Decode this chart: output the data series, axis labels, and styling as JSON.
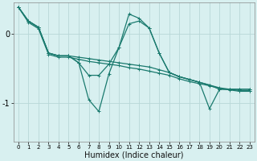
{
  "xlabel": "Humidex (Indice chaleur)",
  "bg_color": "#d8f0f0",
  "line_color": "#1a7a6e",
  "grid_color": "#b8d8d8",
  "xlim": [
    -0.5,
    23.5
  ],
  "ylim": [
    -1.55,
    0.45
  ],
  "yticks": [
    0,
    -1
  ],
  "ytick_labels": [
    "0",
    "-1"
  ],
  "xticks": [
    0,
    1,
    2,
    3,
    4,
    5,
    6,
    7,
    8,
    9,
    10,
    11,
    12,
    13,
    14,
    15,
    16,
    17,
    18,
    19,
    20,
    21,
    22,
    23
  ],
  "series": [
    [
      0.38,
      0.18,
      0.09,
      -0.28,
      -0.32,
      -0.32,
      -0.34,
      -0.36,
      -0.38,
      -0.4,
      -0.42,
      -0.44,
      -0.46,
      -0.48,
      -0.52,
      -0.56,
      -0.62,
      -0.66,
      -0.7,
      -0.74,
      -0.78,
      -0.8,
      -0.82,
      -0.82
    ],
    [
      0.38,
      0.16,
      0.07,
      -0.3,
      -0.34,
      -0.34,
      -0.37,
      -0.4,
      -0.42,
      -0.44,
      -0.46,
      -0.49,
      -0.51,
      -0.54,
      -0.57,
      -0.6,
      -0.65,
      -0.69,
      -0.72,
      -0.75,
      -0.79,
      -0.81,
      -0.83,
      -0.83
    ],
    [
      0.38,
      0.18,
      0.09,
      -0.28,
      -0.32,
      -0.32,
      -0.42,
      -0.95,
      -1.12,
      -0.58,
      -0.2,
      0.28,
      0.22,
      0.08,
      -0.28,
      -0.56,
      -0.62,
      -0.66,
      -0.7,
      -1.08,
      -0.8,
      -0.8,
      -0.8,
      -0.8
    ],
    [
      0.38,
      0.18,
      0.09,
      -0.28,
      -0.32,
      -0.32,
      -0.42,
      -0.6,
      -0.6,
      -0.44,
      -0.2,
      0.14,
      0.18,
      0.08,
      -0.28,
      -0.56,
      -0.62,
      -0.66,
      -0.7,
      -0.74,
      -0.8,
      -0.8,
      -0.8,
      -0.8
    ]
  ],
  "linewidth": 0.9,
  "marker_size": 2.5
}
